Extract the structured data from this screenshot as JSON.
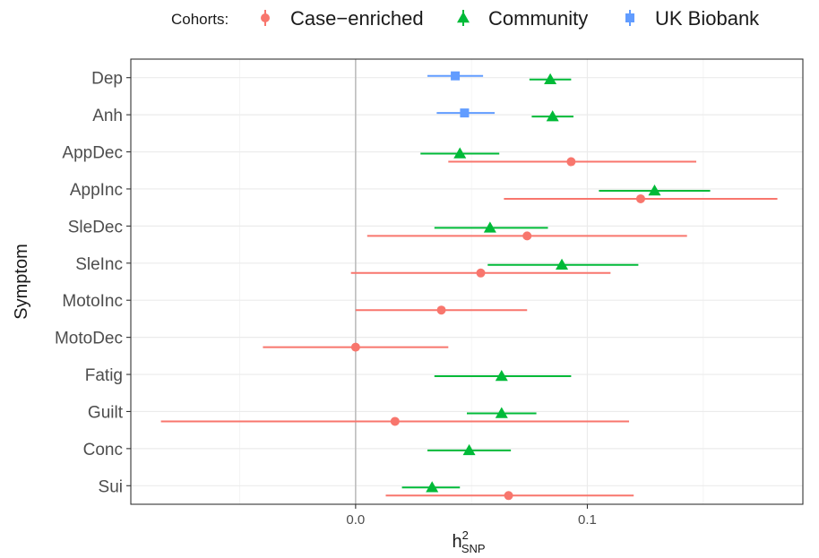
{
  "chart_data": {
    "type": "forest",
    "legend": {
      "title": "Cohorts:",
      "entries": [
        {
          "name": "Case−enriched",
          "color": "#F8766D",
          "shape": "circle"
        },
        {
          "name": "Community",
          "color": "#00BA38",
          "shape": "triangle"
        },
        {
          "name": "UK Biobank",
          "color": "#619CFF",
          "shape": "square"
        }
      ],
      "position": "top"
    },
    "ylabel": "Symptom",
    "xlabel": {
      "base": "h",
      "sup": "2",
      "sub": "SNP"
    },
    "categories": [
      "Dep",
      "Anh",
      "AppDec",
      "AppInc",
      "SleDec",
      "SleInc",
      "MotoInc",
      "MotoDec",
      "Fatig",
      "Guilt",
      "Conc",
      "Sui"
    ],
    "xlim": [
      -0.097,
      0.193
    ],
    "xticks": [
      0.0,
      0.1
    ],
    "xtick_labels": [
      "0.0",
      "0.1"
    ],
    "reference_line": 0,
    "grid": true,
    "series": [
      {
        "name": "UK Biobank",
        "points": [
          {
            "category": "Dep",
            "estimate": 0.043,
            "lower": 0.031,
            "upper": 0.055
          },
          {
            "category": "Anh",
            "estimate": 0.047,
            "lower": 0.035,
            "upper": 0.06
          }
        ]
      },
      {
        "name": "Community",
        "points": [
          {
            "category": "Dep",
            "estimate": 0.084,
            "lower": 0.075,
            "upper": 0.093
          },
          {
            "category": "Anh",
            "estimate": 0.085,
            "lower": 0.076,
            "upper": 0.094
          },
          {
            "category": "AppDec",
            "estimate": 0.045,
            "lower": 0.028,
            "upper": 0.062
          },
          {
            "category": "AppInc",
            "estimate": 0.129,
            "lower": 0.105,
            "upper": 0.153
          },
          {
            "category": "SleDec",
            "estimate": 0.058,
            "lower": 0.034,
            "upper": 0.083
          },
          {
            "category": "SleInc",
            "estimate": 0.089,
            "lower": 0.057,
            "upper": 0.122
          },
          {
            "category": "Fatig",
            "estimate": 0.063,
            "lower": 0.034,
            "upper": 0.093
          },
          {
            "category": "Guilt",
            "estimate": 0.063,
            "lower": 0.048,
            "upper": 0.078
          },
          {
            "category": "Conc",
            "estimate": 0.049,
            "lower": 0.031,
            "upper": 0.067
          },
          {
            "category": "Sui",
            "estimate": 0.033,
            "lower": 0.02,
            "upper": 0.045
          }
        ]
      },
      {
        "name": "Case−enriched",
        "points": [
          {
            "category": "AppDec",
            "estimate": 0.093,
            "lower": 0.04,
            "upper": 0.147
          },
          {
            "category": "AppInc",
            "estimate": 0.123,
            "lower": 0.064,
            "upper": 0.182
          },
          {
            "category": "SleDec",
            "estimate": 0.074,
            "lower": 0.005,
            "upper": 0.143
          },
          {
            "category": "SleInc",
            "estimate": 0.054,
            "lower": -0.002,
            "upper": 0.11
          },
          {
            "category": "MotoInc",
            "estimate": 0.037,
            "lower": 0.0,
            "upper": 0.074
          },
          {
            "category": "MotoDec",
            "estimate": 0.0,
            "lower": -0.04,
            "upper": 0.04
          },
          {
            "category": "Guilt",
            "estimate": 0.017,
            "lower": -0.084,
            "upper": 0.118
          },
          {
            "category": "Sui",
            "estimate": 0.066,
            "lower": 0.013,
            "upper": 0.12
          }
        ]
      }
    ]
  }
}
